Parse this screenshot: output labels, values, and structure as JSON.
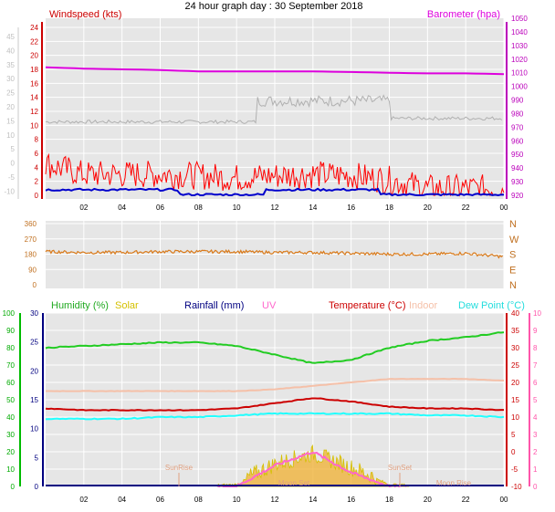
{
  "title": "24 hour graph day : 30 September 2018",
  "colors": {
    "windspeed": "#ff0000",
    "gust": "#ff0000",
    "avg_wind": "#0000cc",
    "barometer": "#dd00dd",
    "baro_bg": "#b0b0b0",
    "direction": "#d97a1a",
    "humidity": "#22cc22",
    "solar": "#d4c000",
    "rainfall": "#000080",
    "uv": "#ff66cc",
    "temperature": "#cc0000",
    "indoor": "#f5c0a8",
    "dewpoint": "#22ffff",
    "panel_bg": "#e6e6e6",
    "grid": "#ffffff",
    "left_axis_green": "#00bb00",
    "right_axis_pink": "#ff55aa",
    "left_axis_red": "#cc0000",
    "right_axis_purple": "#bb00bb",
    "solar_fill": "#f0b030"
  },
  "x_tick_labels": [
    "02",
    "04",
    "06",
    "08",
    "10",
    "12",
    "14",
    "16",
    "18",
    "20",
    "22",
    "00"
  ],
  "wind_panel": {
    "left_label": "Windspeed (kts)",
    "right_label": "Barometer (hpa)",
    "outer_left_ticks": [
      "45",
      "40",
      "35",
      "30",
      "25",
      "20",
      "15",
      "10",
      "5",
      "0",
      "-5",
      "-10"
    ],
    "inner_left_ticks": [
      "24",
      "22",
      "20",
      "18",
      "16",
      "14",
      "12",
      "10",
      "8",
      "6",
      "4",
      "2",
      "0"
    ],
    "right_ticks": [
      "1050",
      "1040",
      "1030",
      "1020",
      "1010",
      "1000",
      "990",
      "980",
      "970",
      "960",
      "950",
      "940",
      "930",
      "920"
    ]
  },
  "direction_panel": {
    "left_ticks": [
      "360",
      "270",
      "180",
      "90",
      "0"
    ],
    "compass": [
      "N",
      "W",
      "S",
      "E",
      "N"
    ]
  },
  "lower_panel": {
    "labels": {
      "humidity": "Humidity (%)",
      "solar": "Solar",
      "rainfall": "Rainfall (mm)",
      "uv": "UV",
      "temperature": "Temperature (°C)",
      "indoor": "Indoor",
      "dewpoint": "Dew Point (°C)"
    },
    "humidity_ticks": [
      "100",
      "90",
      "80",
      "70",
      "60",
      "50",
      "40",
      "30",
      "20",
      "10",
      "0"
    ],
    "rain_ticks": [
      "30",
      "25",
      "20",
      "15",
      "10",
      "5",
      "0"
    ],
    "temp_ticks": [
      "40",
      "35",
      "30",
      "25",
      "20",
      "15",
      "10",
      "5",
      "0",
      "-5",
      "-10"
    ],
    "uv_ticks": [
      "10",
      "9",
      "8",
      "7",
      "6",
      "5",
      "4",
      "3",
      "2",
      "1",
      "0"
    ],
    "annotations": {
      "sunrise": "SunRise",
      "sunset": "SunSet",
      "moonset": "Moon Set",
      "moonrise": "Moon Rise"
    }
  },
  "chart_data": [
    {
      "type": "line",
      "title": "24 hour graph day : 30 September 2018",
      "x": [
        "00",
        "02",
        "04",
        "06",
        "08",
        "10",
        "12",
        "14",
        "16",
        "18",
        "20",
        "22",
        "00"
      ],
      "xlabel": "",
      "ylabel": "Windspeed (kts)",
      "ylim": [
        0,
        25
      ],
      "y2label": "Barometer (hpa)",
      "y2lim": [
        920,
        1050
      ],
      "series": [
        {
          "name": "Windspeed (kts)",
          "axis": "left",
          "values": [
            4.5,
            3.0,
            3.0,
            3.0,
            2.8,
            2.5,
            2.8,
            3.0,
            2.8,
            2.2,
            1.0,
            1.0,
            1.0
          ]
        },
        {
          "name": "Barometer (hpa)",
          "axis": "right",
          "values": [
            1014,
            1013,
            1012.5,
            1012,
            1011,
            1011,
            1011,
            1011,
            1010.5,
            1010,
            1009.5,
            1009.5,
            1009
          ]
        }
      ]
    },
    {
      "type": "line",
      "x": [
        "00",
        "02",
        "04",
        "06",
        "08",
        "10",
        "12",
        "14",
        "16",
        "18",
        "20",
        "22",
        "00"
      ],
      "ylabel": "",
      "ylim": [
        0,
        360
      ],
      "series": [
        {
          "name": "",
          "values": [
            195,
            190,
            190,
            195,
            195,
            195,
            190,
            190,
            185,
            180,
            180,
            185,
            165
          ]
        }
      ]
    },
    {
      "type": "line",
      "x": [
        "00",
        "02",
        "04",
        "06",
        "08",
        "10",
        "12",
        "14",
        "16",
        "18",
        "20",
        "22",
        "00"
      ],
      "ylim": [
        -10,
        40
      ],
      "y_humidity_lim": [
        0,
        100
      ],
      "series": [
        {
          "name": "Humidity (%)",
          "axis": "humidity",
          "values": [
            80,
            81,
            82,
            83,
            83,
            81,
            76,
            71,
            73,
            80,
            84,
            86,
            89
          ]
        },
        {
          "name": "Temperature (°C)",
          "axis": "temperature",
          "values": [
            12.5,
            12,
            12,
            12,
            12,
            12.5,
            14,
            15.5,
            14.5,
            13,
            12.5,
            12.5,
            12
          ]
        },
        {
          "name": "Indoor",
          "axis": "temperature",
          "values": [
            17.5,
            17.5,
            17.5,
            17.5,
            17.5,
            17.5,
            18,
            19,
            20,
            21,
            21,
            21,
            20.5
          ]
        },
        {
          "name": "Dew Point (°C)",
          "axis": "temperature",
          "values": [
            9.5,
            9.5,
            9.5,
            10,
            10,
            10.5,
            11,
            11,
            11,
            11,
            10.5,
            10.5,
            10
          ]
        },
        {
          "name": "Solar",
          "axis": "temperature",
          "values": [
            0,
            0,
            0,
            0,
            0,
            0.5,
            6,
            9,
            5,
            0.5,
            0,
            0,
            0
          ]
        },
        {
          "name": "UV",
          "axis": "temperature",
          "values": [
            0,
            0,
            0,
            0,
            0,
            0,
            3,
            5,
            2,
            0,
            0,
            0,
            0
          ]
        },
        {
          "name": "Rainfall (mm)",
          "axis": "rain",
          "values": [
            0,
            0,
            0,
            0,
            0,
            0,
            0,
            0,
            0,
            0,
            0,
            0,
            0
          ]
        }
      ]
    }
  ]
}
